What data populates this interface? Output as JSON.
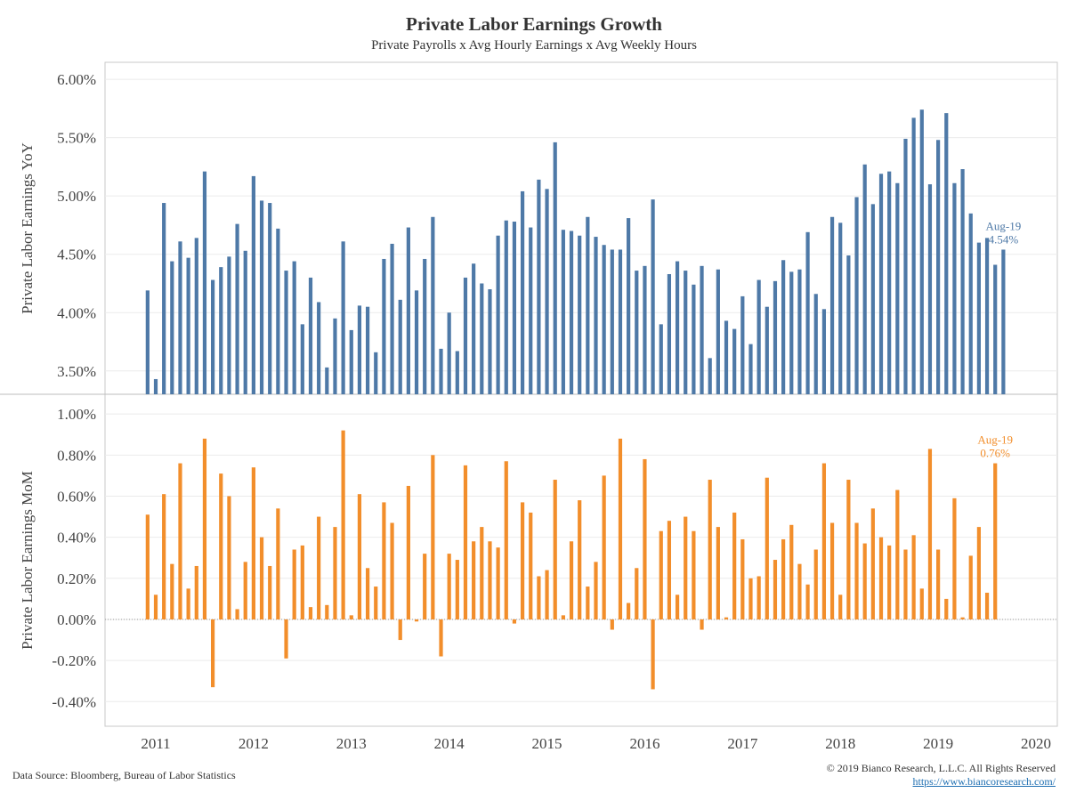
{
  "header": {
    "title": "Private Labor Earnings Growth",
    "subtitle": "Private Payrolls x Avg Hourly Earnings x Avg Weekly Hours"
  },
  "footer": {
    "source": "Data Source: Bloomberg, Bureau of Labor Statistics",
    "copyright": "© 2019 Bianco Research, L.L.C. All Rights Reserved",
    "url": "https://www.biancoresearch.com/"
  },
  "chart_data": [
    {
      "type": "bar",
      "name": "yoy",
      "ylabel": "Private Labor Earnings YoY",
      "ylim": [
        3.3,
        6.1
      ],
      "yticks": [
        3.5,
        4.0,
        4.5,
        5.0,
        5.5,
        6.0
      ],
      "ytick_labels": [
        "3.50%",
        "4.00%",
        "4.50%",
        "5.00%",
        "5.50%",
        "6.00%"
      ],
      "xticks": [
        "2011",
        "2012",
        "2013",
        "2014",
        "2015",
        "2016",
        "2017",
        "2018",
        "2019",
        "2020"
      ],
      "start": "2010-12",
      "end": "2019-08",
      "color": "#4e79a7",
      "annotation": {
        "date": "Aug-19",
        "value": "4.54%"
      },
      "values": [
        4.19,
        3.43,
        4.94,
        4.44,
        4.61,
        4.47,
        4.64,
        5.21,
        4.28,
        4.39,
        4.48,
        4.76,
        4.53,
        5.17,
        4.96,
        4.94,
        4.72,
        4.36,
        4.44,
        3.9,
        4.3,
        4.09,
        3.53,
        3.95,
        4.61,
        3.85,
        4.06,
        4.05,
        3.66,
        4.46,
        4.59,
        4.11,
        4.73,
        4.19,
        4.46,
        4.82,
        3.69,
        4.0,
        3.67,
        4.3,
        4.42,
        4.25,
        4.2,
        4.66,
        4.79,
        4.78,
        5.04,
        4.73,
        5.14,
        5.06,
        5.46,
        4.71,
        4.7,
        4.66,
        4.82,
        4.65,
        4.58,
        4.54,
        4.54,
        4.81,
        4.36,
        4.4,
        4.97,
        3.9,
        4.33,
        4.44,
        4.36,
        4.24,
        4.4,
        3.61,
        4.37,
        3.93,
        3.86,
        4.14,
        3.73,
        4.28,
        4.05,
        4.27,
        4.45,
        4.35,
        4.37,
        4.69,
        4.16,
        4.03,
        4.82,
        4.77,
        4.49,
        4.99,
        5.27,
        4.93,
        5.19,
        5.21,
        5.11,
        5.49,
        5.67,
        5.74,
        5.1,
        5.48,
        5.71,
        5.11,
        5.23,
        4.85,
        4.6,
        4.64,
        4.41,
        4.54
      ]
    },
    {
      "type": "bar",
      "name": "mom",
      "ylabel": "Private Labor Earnings MoM",
      "ylim": [
        -0.52,
        1.07
      ],
      "yticks": [
        -0.4,
        -0.2,
        0.0,
        0.2,
        0.4,
        0.6,
        0.8,
        1.0
      ],
      "ytick_labels": [
        "-0.40%",
        "-0.20%",
        "0.00%",
        "0.20%",
        "0.40%",
        "0.60%",
        "0.80%",
        "1.00%"
      ],
      "xticks": [
        "2011",
        "2012",
        "2013",
        "2014",
        "2015",
        "2016",
        "2017",
        "2018",
        "2019",
        "2020"
      ],
      "start": "2010-12",
      "end": "2019-08",
      "color": "#f28e2b",
      "annotation": {
        "date": "Aug-19",
        "value": "0.76%"
      },
      "values": [
        0.51,
        0.12,
        0.61,
        0.27,
        0.76,
        0.15,
        0.26,
        0.88,
        -0.33,
        0.71,
        0.6,
        0.05,
        0.28,
        0.74,
        0.4,
        0.26,
        0.54,
        -0.19,
        0.34,
        0.36,
        0.06,
        0.5,
        0.07,
        0.45,
        0.92,
        0.02,
        0.61,
        0.25,
        0.16,
        0.57,
        0.47,
        -0.1,
        0.65,
        -0.01,
        0.32,
        0.8,
        -0.18,
        0.32,
        0.29,
        0.75,
        0.38,
        0.45,
        0.38,
        0.35,
        0.77,
        -0.02,
        0.57,
        0.52,
        0.21,
        0.24,
        0.68,
        0.02,
        0.38,
        0.58,
        0.16,
        0.28,
        0.7,
        -0.05,
        0.88,
        0.08,
        0.25,
        0.78,
        -0.34,
        0.43,
        0.48,
        0.12,
        0.5,
        0.43,
        -0.05,
        0.68,
        0.45,
        0.01,
        0.52,
        0.39,
        0.2,
        0.21,
        0.69,
        0.29,
        0.39,
        0.46,
        0.27,
        0.17,
        0.34,
        0.76,
        0.47,
        0.12,
        0.68,
        0.47,
        0.37,
        0.54,
        0.4,
        0.36,
        0.63,
        0.34,
        0.41,
        0.15,
        0.83,
        0.34,
        0.1,
        0.59,
        0.01,
        0.31,
        0.45,
        0.13,
        0.76
      ]
    }
  ]
}
